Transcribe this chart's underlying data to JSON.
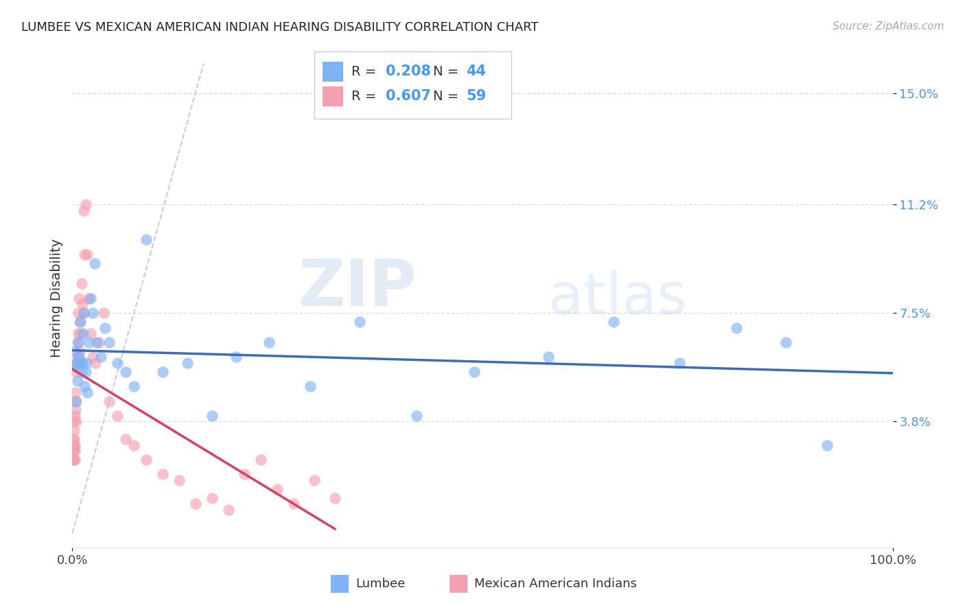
{
  "title": "LUMBEE VS MEXICAN AMERICAN INDIAN HEARING DISABILITY CORRELATION CHART",
  "source": "Source: ZipAtlas.com",
  "ylabel": "Hearing Disability",
  "yticks": [
    0.038,
    0.075,
    0.112,
    0.15
  ],
  "ytick_labels": [
    "3.8%",
    "7.5%",
    "11.2%",
    "15.0%"
  ],
  "xlim": [
    0.0,
    1.0
  ],
  "ylim": [
    -0.005,
    0.165
  ],
  "watermark_zip": "ZIP",
  "watermark_atlas": "atlas",
  "lumbee_R": "0.208",
  "lumbee_N": "44",
  "mexican_R": "0.607",
  "mexican_N": "59",
  "lumbee_color": "#7eb3f5",
  "mexican_color": "#f5a0b0",
  "lumbee_line_color": "#3a6bbf",
  "mexican_line_color": "#d94060",
  "diagonal_color": "#cccccc",
  "lumbee_x": [
    0.002,
    0.003,
    0.004,
    0.005,
    0.006,
    0.007,
    0.008,
    0.009,
    0.01,
    0.011,
    0.012,
    0.013,
    0.014,
    0.015,
    0.016,
    0.017,
    0.018,
    0.02,
    0.022,
    0.025,
    0.027,
    0.03,
    0.035,
    0.04,
    0.045,
    0.055,
    0.065,
    0.075,
    0.09,
    0.11,
    0.14,
    0.17,
    0.2,
    0.24,
    0.29,
    0.35,
    0.42,
    0.49,
    0.58,
    0.66,
    0.74,
    0.81,
    0.87,
    0.92
  ],
  "lumbee_y": [
    0.057,
    0.062,
    0.045,
    0.058,
    0.052,
    0.065,
    0.06,
    0.058,
    0.072,
    0.055,
    0.058,
    0.068,
    0.075,
    0.05,
    0.055,
    0.058,
    0.048,
    0.065,
    0.08,
    0.075,
    0.092,
    0.065,
    0.06,
    0.07,
    0.065,
    0.058,
    0.055,
    0.05,
    0.1,
    0.055,
    0.058,
    0.04,
    0.06,
    0.065,
    0.05,
    0.072,
    0.04,
    0.055,
    0.06,
    0.072,
    0.058,
    0.07,
    0.065,
    0.03
  ],
  "mexican_x": [
    0.001,
    0.001,
    0.001,
    0.001,
    0.002,
    0.002,
    0.002,
    0.002,
    0.002,
    0.002,
    0.003,
    0.003,
    0.003,
    0.003,
    0.004,
    0.004,
    0.004,
    0.005,
    0.005,
    0.005,
    0.006,
    0.006,
    0.007,
    0.007,
    0.008,
    0.008,
    0.009,
    0.009,
    0.01,
    0.01,
    0.011,
    0.012,
    0.013,
    0.014,
    0.015,
    0.016,
    0.018,
    0.02,
    0.022,
    0.025,
    0.028,
    0.032,
    0.038,
    0.045,
    0.055,
    0.065,
    0.075,
    0.09,
    0.11,
    0.13,
    0.15,
    0.17,
    0.19,
    0.21,
    0.23,
    0.25,
    0.27,
    0.295,
    0.32
  ],
  "mexican_y": [
    0.028,
    0.03,
    0.025,
    0.032,
    0.03,
    0.035,
    0.025,
    0.028,
    0.038,
    0.032,
    0.03,
    0.04,
    0.028,
    0.025,
    0.055,
    0.042,
    0.048,
    0.058,
    0.045,
    0.038,
    0.06,
    0.065,
    0.068,
    0.075,
    0.08,
    0.06,
    0.062,
    0.072,
    0.068,
    0.058,
    0.085,
    0.078,
    0.075,
    0.11,
    0.095,
    0.112,
    0.095,
    0.08,
    0.068,
    0.06,
    0.058,
    0.065,
    0.075,
    0.045,
    0.04,
    0.032,
    0.03,
    0.025,
    0.02,
    0.018,
    0.01,
    0.012,
    0.008,
    0.02,
    0.025,
    0.015,
    0.01,
    0.018,
    0.012
  ]
}
